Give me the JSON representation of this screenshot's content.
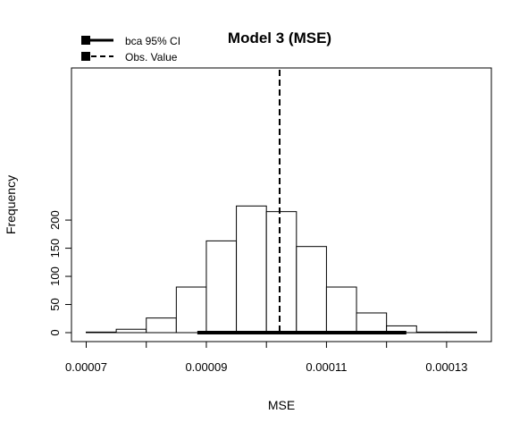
{
  "chart_data": {
    "type": "bar",
    "title": "Model 3 (MSE)",
    "xlabel": "MSE",
    "ylabel": "Frequency",
    "xlim": [
      7e-05,
      0.000135
    ],
    "ylim": [
      0,
      235
    ],
    "x_ticks": [
      {
        "value": 7e-05,
        "label": "0.00007"
      },
      {
        "value": 9e-05,
        "label": "0.00009"
      },
      {
        "value": 0.00011,
        "label": "0.00011"
      },
      {
        "value": 0.00013,
        "label": "0.00013"
      }
    ],
    "y_ticks": [
      {
        "value": 0,
        "label": "0"
      },
      {
        "value": 50,
        "label": "50"
      },
      {
        "value": 100,
        "label": "100"
      },
      {
        "value": 150,
        "label": "150"
      },
      {
        "value": 200,
        "label": "200"
      }
    ],
    "bins": [
      {
        "start": 7e-05,
        "end": 7.5e-05,
        "count": 1
      },
      {
        "start": 7.5e-05,
        "end": 8e-05,
        "count": 6
      },
      {
        "start": 8e-05,
        "end": 8.5e-05,
        "count": 26
      },
      {
        "start": 8.5e-05,
        "end": 9e-05,
        "count": 81
      },
      {
        "start": 9e-05,
        "end": 9.5e-05,
        "count": 163
      },
      {
        "start": 9.5e-05,
        "end": 0.0001,
        "count": 225
      },
      {
        "start": 0.0001,
        "end": 0.000105,
        "count": 215
      },
      {
        "start": 0.000105,
        "end": 0.00011,
        "count": 153
      },
      {
        "start": 0.00011,
        "end": 0.000115,
        "count": 81
      },
      {
        "start": 0.000115,
        "end": 0.00012,
        "count": 35
      },
      {
        "start": 0.00012,
        "end": 0.000125,
        "count": 12
      },
      {
        "start": 0.000125,
        "end": 0.00013,
        "count": 1
      },
      {
        "start": 0.00013,
        "end": 0.000135,
        "count": 1
      }
    ],
    "ci_bca_95": [
      8.85e-05,
      0.0001233
    ],
    "observed_value": 0.0001022,
    "legend": {
      "position": "top-left",
      "entries": [
        {
          "label": "bca 95% CI",
          "style": "solid"
        },
        {
          "label": "Obs. Value",
          "style": "dashed"
        }
      ]
    },
    "grid": false
  }
}
